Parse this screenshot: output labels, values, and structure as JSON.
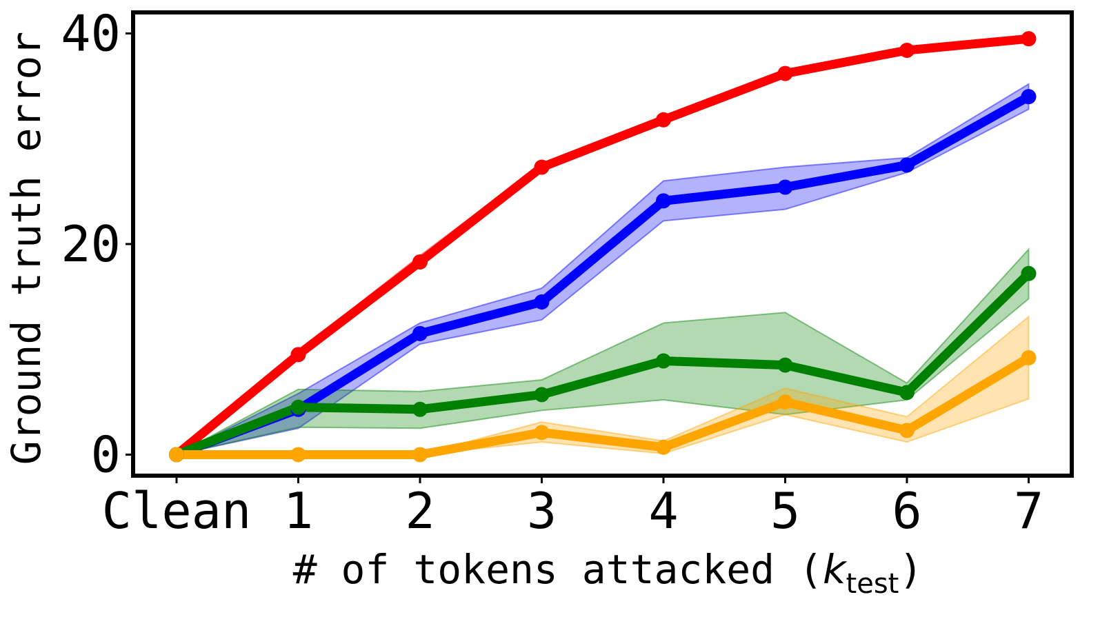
{
  "chart_data": {
    "type": "line",
    "categories": [
      "Clean",
      "1",
      "2",
      "3",
      "4",
      "5",
      "6",
      "7"
    ],
    "xlabel_prefix": "# of tokens attacked (",
    "xlabel_var": "k",
    "xlabel_sub": "test",
    "xlabel_suffix": ")",
    "ylabel": "Ground truth error",
    "ylim": [
      -2,
      42
    ],
    "yticks": [
      0,
      20,
      40
    ],
    "grid": false,
    "series": [
      {
        "color": "#ff0000",
        "values": [
          0,
          9.5,
          18.3,
          27.3,
          31.8,
          36.2,
          38.4,
          39.5
        ],
        "lower": [
          0,
          9.2,
          18.0,
          27.0,
          31.5,
          35.9,
          38.2,
          39.3
        ],
        "upper": [
          0,
          9.8,
          18.9,
          27.6,
          32.1,
          36.5,
          38.6,
          39.7
        ]
      },
      {
        "color": "#0000ff",
        "values": [
          0,
          4.3,
          11.5,
          14.5,
          24.1,
          25.4,
          27.5,
          34.0
        ],
        "lower": [
          0,
          2.5,
          10.5,
          12.8,
          22.2,
          23.3,
          26.8,
          32.8
        ],
        "upper": [
          0,
          5.8,
          12.5,
          15.8,
          26.0,
          27.3,
          28.2,
          35.2
        ]
      },
      {
        "color": "#008000",
        "values": [
          0,
          4.5,
          4.3,
          5.7,
          8.9,
          8.5,
          5.9,
          17.2
        ],
        "lower": [
          0,
          2.6,
          2.5,
          4.2,
          5.2,
          3.8,
          5.2,
          14.8
        ],
        "upper": [
          0,
          6.2,
          6.0,
          7.1,
          12.5,
          13.5,
          6.8,
          19.5
        ]
      },
      {
        "color": "#ffa500",
        "values": [
          0,
          0,
          0,
          2.1,
          0.7,
          5.0,
          2.3,
          9.2
        ],
        "lower": [
          0,
          0,
          0,
          1.2,
          0.1,
          3.8,
          1.2,
          5.3
        ],
        "upper": [
          0,
          0,
          0,
          3.1,
          1.3,
          6.3,
          3.6,
          13.1
        ]
      }
    ]
  }
}
